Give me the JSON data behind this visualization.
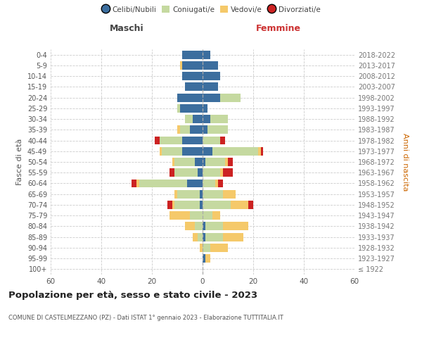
{
  "age_groups": [
    "100+",
    "95-99",
    "90-94",
    "85-89",
    "80-84",
    "75-79",
    "70-74",
    "65-69",
    "60-64",
    "55-59",
    "50-54",
    "45-49",
    "40-44",
    "35-39",
    "30-34",
    "25-29",
    "20-24",
    "15-19",
    "10-14",
    "5-9",
    "0-4"
  ],
  "birth_years": [
    "≤ 1922",
    "1923-1927",
    "1928-1932",
    "1933-1937",
    "1938-1942",
    "1943-1947",
    "1948-1952",
    "1953-1957",
    "1958-1962",
    "1963-1967",
    "1968-1972",
    "1973-1977",
    "1978-1982",
    "1983-1987",
    "1988-1992",
    "1993-1997",
    "1998-2002",
    "2003-2007",
    "2008-2012",
    "2013-2017",
    "2018-2022"
  ],
  "male": {
    "celibe": [
      0,
      0,
      0,
      0,
      0,
      0,
      1,
      1,
      6,
      2,
      3,
      8,
      8,
      5,
      4,
      9,
      10,
      7,
      8,
      8,
      8
    ],
    "coniugato": [
      0,
      0,
      0,
      2,
      3,
      5,
      10,
      9,
      19,
      9,
      8,
      8,
      9,
      4,
      3,
      1,
      0,
      0,
      0,
      0,
      0
    ],
    "vedovo": [
      0,
      0,
      1,
      2,
      4,
      8,
      1,
      1,
      1,
      0,
      1,
      1,
      0,
      1,
      0,
      0,
      0,
      0,
      0,
      1,
      0
    ],
    "divorziato": [
      0,
      0,
      0,
      0,
      0,
      0,
      2,
      0,
      2,
      2,
      0,
      0,
      2,
      0,
      0,
      0,
      0,
      0,
      0,
      0,
      0
    ]
  },
  "female": {
    "nubile": [
      0,
      1,
      0,
      1,
      1,
      0,
      0,
      0,
      0,
      0,
      1,
      4,
      0,
      2,
      3,
      2,
      7,
      6,
      7,
      6,
      3
    ],
    "coniugata": [
      0,
      0,
      3,
      7,
      7,
      4,
      11,
      8,
      5,
      7,
      8,
      18,
      7,
      8,
      7,
      0,
      8,
      0,
      0,
      0,
      0
    ],
    "vedova": [
      0,
      2,
      7,
      8,
      10,
      3,
      7,
      5,
      1,
      1,
      1,
      1,
      0,
      0,
      0,
      0,
      0,
      0,
      0,
      0,
      0
    ],
    "divorziata": [
      0,
      0,
      0,
      0,
      0,
      0,
      2,
      0,
      2,
      4,
      2,
      1,
      2,
      0,
      0,
      0,
      0,
      0,
      0,
      0,
      0
    ]
  },
  "colors": {
    "celibe_nubile": "#3c6e9e",
    "coniugato": "#c5d9a0",
    "vedovo": "#f5c96a",
    "divorziato": "#cc2222"
  },
  "xlim": 60,
  "title": "Popolazione per età, sesso e stato civile - 2023",
  "subtitle": "COMUNE DI CASTELMEZZANO (PZ) - Dati ISTAT 1° gennaio 2023 - Elaborazione TUTTITALIA.IT",
  "xlabel_left": "Maschi",
  "xlabel_right": "Femmine",
  "ylabel_left": "Fasce di età",
  "ylabel_right": "Anni di nascita",
  "legend_labels": [
    "Celibi/Nubili",
    "Coniugati/e",
    "Vedovi/e",
    "Divorziati/e"
  ],
  "background_color": "#ffffff",
  "grid_color": "#cccccc"
}
